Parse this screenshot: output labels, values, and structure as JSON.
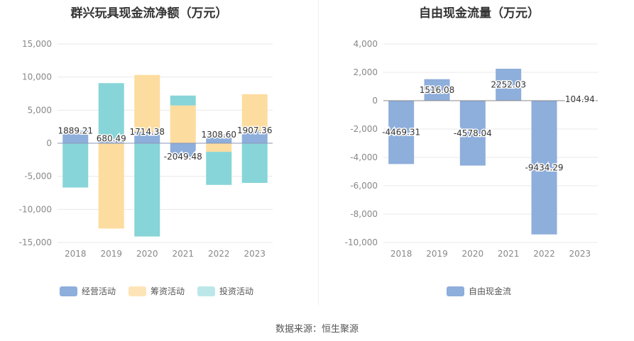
{
  "source": "数据来源：恒生聚源",
  "chart_data": [
    {
      "type": "bar",
      "stacked": true,
      "title": "群兴玩具现金流净额（万元）",
      "categories": [
        "2018",
        "2019",
        "2020",
        "2021",
        "2022",
        "2023"
      ],
      "ylim": [
        -15000,
        15000
      ],
      "yticks": [
        15000,
        10000,
        5000,
        0,
        -5000,
        -10000,
        -15000
      ],
      "ytick_labels": [
        "15,000",
        "10,000",
        "5,000",
        "0",
        "-5,000",
        "-10,000",
        "-15,000"
      ],
      "grid": true,
      "legend_position": "bottom",
      "series": [
        {
          "name": "经营活动",
          "color": "#8eaedb",
          "values": [
            1889.21,
            680.49,
            1714.38,
            -2049.48,
            1308.6,
            1907.36
          ]
        },
        {
          "name": "筹资活动",
          "color": "#fddc9f",
          "values": [
            0,
            -12900,
            8600,
            5700,
            -1300,
            5500
          ]
        },
        {
          "name": "投资活动",
          "color": "#87d5d8",
          "values": [
            -6700,
            8400,
            -14100,
            1500,
            -5000,
            -6000
          ]
        }
      ],
      "data_labels": [
        "1889.21",
        "680.49",
        "1714.38",
        "-2049.48",
        "1308.60",
        "1907.36"
      ]
    },
    {
      "type": "bar",
      "title": "自由现金流量（万元）",
      "categories": [
        "2018",
        "2019",
        "2020",
        "2021",
        "2022",
        "2023"
      ],
      "ylim": [
        -10000,
        4000
      ],
      "yticks": [
        4000,
        2000,
        0,
        -2000,
        -4000,
        -6000,
        -8000,
        -10000
      ],
      "ytick_labels": [
        "4,000",
        "2,000",
        "0",
        "-2,000",
        "-4,000",
        "-6,000",
        "-8,000",
        "-10,000"
      ],
      "grid": true,
      "legend_position": "bottom",
      "series": [
        {
          "name": "自由现金流",
          "color": "#8eaedb",
          "values": [
            -4469.31,
            1516.08,
            -4578.04,
            2252.03,
            -9434.29,
            104.94
          ]
        }
      ],
      "data_labels": [
        "-4469.31",
        "1516.08",
        "-4578.04",
        "2252.03",
        "-9434.29",
        "104.94"
      ]
    }
  ]
}
